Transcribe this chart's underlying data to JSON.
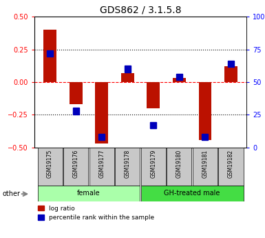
{
  "title": "GDS862 / 3.1.5.8",
  "samples": [
    "GSM19175",
    "GSM19176",
    "GSM19177",
    "GSM19178",
    "GSM19179",
    "GSM19180",
    "GSM19181",
    "GSM19182"
  ],
  "log_ratio": [
    0.4,
    -0.17,
    -0.47,
    0.07,
    -0.2,
    0.03,
    -0.44,
    0.12
  ],
  "percentile_rank_pct": [
    72,
    28,
    8,
    60,
    17,
    54,
    8,
    64
  ],
  "ylim_left": [
    -0.5,
    0.5
  ],
  "ylim_right": [
    0,
    100
  ],
  "yticks_left": [
    -0.5,
    -0.25,
    0,
    0.25,
    0.5
  ],
  "yticks_right": [
    0,
    25,
    50,
    75,
    100
  ],
  "groups": [
    {
      "label": "female",
      "color": "#AAFFAA",
      "start": 0,
      "end": 3
    },
    {
      "label": "GH-treated male",
      "color": "#44DD44",
      "start": 4,
      "end": 7
    }
  ],
  "bar_width": 0.5,
  "red_color": "#BB1100",
  "blue_color": "#0000BB",
  "bg_label": "#C8C8C8",
  "other_label": "other",
  "legend_red": "log ratio",
  "legend_blue": "percentile rank within the sample",
  "title_fontsize": 10
}
